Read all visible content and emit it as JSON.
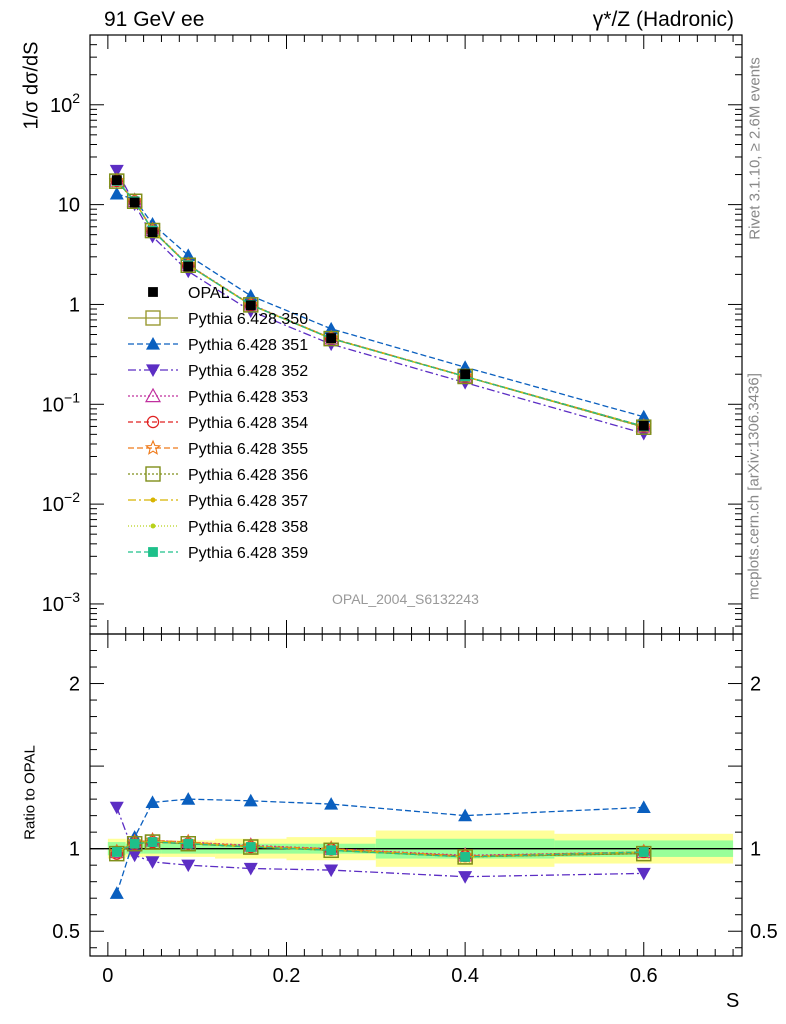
{
  "header": {
    "left": "91 GeV ee",
    "right": "γ*/Z (Hadronic)"
  },
  "side_labels": {
    "rivet": "Rivet 3.1.10, ≥ 2.6M events",
    "mcplots": "mcplots.cern.ch [arXiv:1306.3436]"
  },
  "watermark": "OPAL_2004_S6132243",
  "chart_data": [
    {
      "type": "line",
      "ylabel": "1/σ dσ/dS",
      "yscale": "log",
      "ylim": [
        0.0005,
        500
      ],
      "xlim": [
        -0.02,
        0.71
      ],
      "xlabel": "",
      "x": [
        0.01,
        0.03,
        0.05,
        0.09,
        0.16,
        0.25,
        0.4,
        0.6
      ],
      "series": [
        {
          "name": "OPAL",
          "color": "#000000",
          "marker": "square-filled",
          "dash": "none",
          "values": [
            17.6,
            10.5,
            5.3,
            2.4,
            0.98,
            0.46,
            0.2,
            0.061
          ]
        },
        {
          "name": "Pythia 6.428 350",
          "color": "#9a9a32",
          "marker": "square-open",
          "dash": "solid",
          "values": [
            17.2,
            10.8,
            5.5,
            2.47,
            0.99,
            0.455,
            0.19,
            0.059
          ]
        },
        {
          "name": "Pythia 6.428 351",
          "color": "#0a5fbf",
          "marker": "triangle-up",
          "dash": "6,3",
          "values": [
            12.8,
            11.3,
            6.4,
            3.1,
            1.22,
            0.57,
            0.235,
            0.075
          ]
        },
        {
          "name": "Pythia 6.428 352",
          "color": "#5c2ec4",
          "marker": "triangle-down",
          "dash": "8,3,2,3",
          "values": [
            22.0,
            10.1,
            4.8,
            2.15,
            0.86,
            0.4,
            0.165,
            0.051
          ]
        },
        {
          "name": "Pythia 6.428 353",
          "color": "#c0309e",
          "marker": "triangle-open",
          "dash": "2,2",
          "values": [
            17.4,
            10.9,
            5.6,
            2.5,
            1.0,
            0.46,
            0.19,
            0.06
          ]
        },
        {
          "name": "Pythia 6.428 354",
          "color": "#e02020",
          "marker": "circle-open",
          "dash": "5,3",
          "values": [
            17.3,
            10.8,
            5.5,
            2.48,
            0.99,
            0.458,
            0.19,
            0.06
          ]
        },
        {
          "name": "Pythia 6.428 355",
          "color": "#ef7a1a",
          "marker": "star-open",
          "dash": "6,3",
          "values": [
            17.3,
            10.9,
            5.55,
            2.49,
            0.995,
            0.46,
            0.191,
            0.06
          ]
        },
        {
          "name": "Pythia 6.428 356",
          "color": "#7f8f1a",
          "marker": "square-open",
          "dash": "2,2",
          "values": [
            17.2,
            10.8,
            5.5,
            2.47,
            0.99,
            0.455,
            0.19,
            0.059
          ]
        },
        {
          "name": "Pythia 6.428 357",
          "color": "#d8b400",
          "marker": "dot",
          "dash": "8,3,2,3",
          "values": [
            17.3,
            10.85,
            5.52,
            2.48,
            0.99,
            0.457,
            0.19,
            0.06
          ]
        },
        {
          "name": "Pythia 6.428 358",
          "color": "#b8d21a",
          "marker": "dot",
          "dash": "1,2",
          "values": [
            17.3,
            10.85,
            5.52,
            2.48,
            0.99,
            0.457,
            0.19,
            0.06
          ]
        },
        {
          "name": "Pythia 6.428 359",
          "color": "#1ec08a",
          "marker": "square-filled",
          "dash": "5,3",
          "values": [
            17.3,
            10.8,
            5.5,
            2.47,
            0.99,
            0.456,
            0.19,
            0.06
          ]
        }
      ],
      "legend_position": "middle-left"
    },
    {
      "type": "line",
      "ylabel": "Ratio to OPAL",
      "xlabel": "S",
      "ylim": [
        0.35,
        2.3
      ],
      "xlim": [
        -0.02,
        0.71
      ],
      "x": [
        0.01,
        0.03,
        0.05,
        0.09,
        0.16,
        0.25,
        0.4,
        0.6
      ],
      "bands": [
        {
          "x_edges": [
            0.0,
            0.02,
            0.04,
            0.06,
            0.12,
            0.2,
            0.3,
            0.5,
            0.7
          ],
          "inner": [
            0.04,
            0.03,
            0.03,
            0.03,
            0.03,
            0.03,
            0.06,
            0.05
          ],
          "outer": [
            0.06,
            0.05,
            0.05,
            0.05,
            0.06,
            0.07,
            0.11,
            0.09
          ]
        }
      ],
      "series": [
        {
          "name": "Pythia 6.428 350",
          "values": [
            0.97,
            1.03,
            1.04,
            1.03,
            1.01,
            0.99,
            0.95,
            0.97
          ]
        },
        {
          "name": "Pythia 6.428 351",
          "values": [
            0.73,
            1.07,
            1.28,
            1.3,
            1.29,
            1.27,
            1.2,
            1.25
          ]
        },
        {
          "name": "Pythia 6.428 352",
          "values": [
            1.25,
            0.96,
            0.92,
            0.9,
            0.88,
            0.87,
            0.83,
            0.85
          ]
        },
        {
          "name": "Pythia 6.428 353",
          "values": [
            0.98,
            1.04,
            1.05,
            1.04,
            1.02,
            1.0,
            0.96,
            0.98
          ]
        },
        {
          "name": "Pythia 6.428 354",
          "values": [
            0.97,
            1.03,
            1.04,
            1.03,
            1.01,
            0.995,
            0.955,
            0.98
          ]
        },
        {
          "name": "Pythia 6.428 355",
          "values": [
            0.98,
            1.04,
            1.05,
            1.04,
            1.015,
            1.0,
            0.955,
            0.98
          ]
        },
        {
          "name": "Pythia 6.428 356",
          "values": [
            0.97,
            1.03,
            1.04,
            1.03,
            1.01,
            0.99,
            0.95,
            0.97
          ]
        },
        {
          "name": "Pythia 6.428 357",
          "values": [
            0.98,
            1.035,
            1.045,
            1.035,
            1.01,
            0.995,
            0.95,
            0.98
          ]
        },
        {
          "name": "Pythia 6.428 358",
          "values": [
            0.98,
            1.035,
            1.045,
            1.035,
            1.01,
            0.995,
            0.95,
            0.98
          ]
        },
        {
          "name": "Pythia 6.428 359",
          "values": [
            0.98,
            1.03,
            1.04,
            1.03,
            1.01,
            0.99,
            0.95,
            0.98
          ]
        }
      ]
    }
  ],
  "ticks": {
    "upper_y": [
      {
        "value": 100,
        "mant": "10",
        "exp": "2"
      },
      {
        "value": 10,
        "mant": "10",
        "exp": ""
      },
      {
        "value": 1,
        "mant": "1",
        "exp": ""
      },
      {
        "value": 0.1,
        "mant": "10",
        "exp": "−1"
      },
      {
        "value": 0.01,
        "mant": "10",
        "exp": "−2"
      },
      {
        "value": 0.001,
        "mant": "10",
        "exp": "−3"
      }
    ],
    "ratio_y": [
      {
        "value": 0.5,
        "label": "0.5"
      },
      {
        "value": 1,
        "label": "1"
      },
      {
        "value": 2,
        "label": "2"
      }
    ],
    "x": [
      {
        "value": 0,
        "label": "0"
      },
      {
        "value": 0.2,
        "label": "0.2"
      },
      {
        "value": 0.4,
        "label": "0.4"
      },
      {
        "value": 0.6,
        "label": "0.6"
      }
    ]
  }
}
